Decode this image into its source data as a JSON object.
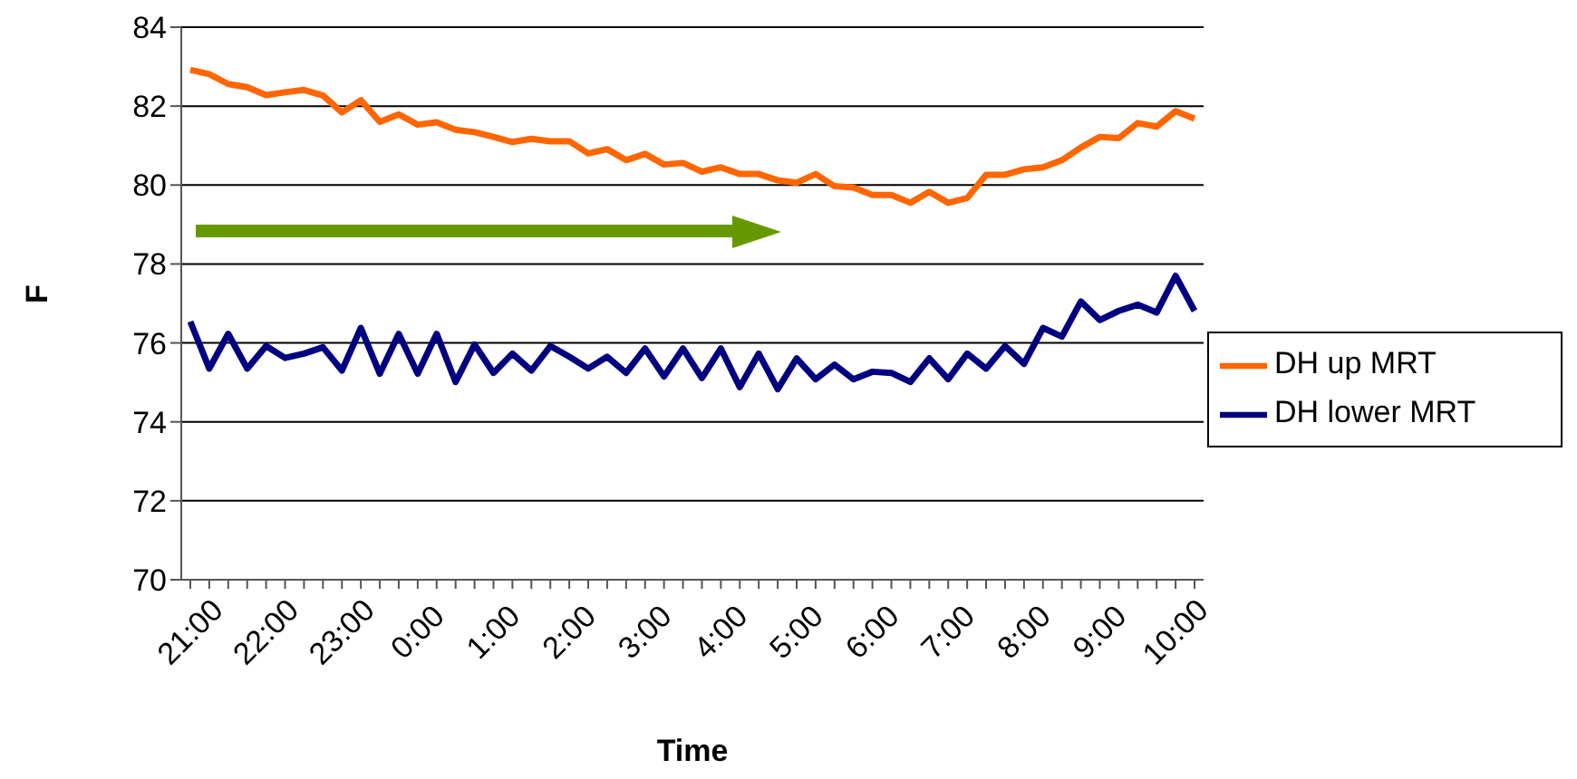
{
  "chart_data": {
    "type": "line",
    "xlabel": "Time",
    "ylabel": "F",
    "categories": [
      "21:00",
      null,
      null,
      null,
      "22:00",
      null,
      null,
      null,
      "23:00",
      null,
      null,
      null,
      "0:00",
      null,
      null,
      null,
      "1:00",
      null,
      null,
      null,
      "2:00",
      null,
      null,
      null,
      "3:00",
      null,
      null,
      null,
      "4:00",
      null,
      null,
      null,
      "5:00",
      null,
      null,
      null,
      "6:00",
      null,
      null,
      null,
      "7:00",
      null,
      null,
      null,
      "8:00",
      null,
      null,
      null,
      "9:00",
      null,
      null,
      null,
      "10:00",
      null
    ],
    "series": [
      {
        "name": "DH up MRT",
        "color": "#ff6600",
        "values": [
          82.92,
          82.81,
          82.56,
          82.48,
          82.28,
          82.35,
          82.41,
          82.27,
          81.84,
          82.15,
          81.6,
          81.79,
          81.53,
          81.59,
          81.4,
          81.34,
          81.22,
          81.09,
          81.17,
          81.11,
          81.11,
          80.8,
          80.91,
          80.63,
          80.79,
          80.52,
          80.56,
          80.34,
          80.45,
          80.28,
          80.28,
          80.12,
          80.06,
          80.28,
          79.97,
          79.94,
          79.75,
          79.75,
          79.55,
          79.83,
          79.55,
          79.67,
          80.26,
          80.26,
          80.4,
          80.45,
          80.63,
          80.95,
          81.22,
          81.19,
          81.57,
          81.48,
          81.87,
          81.68
        ]
      },
      {
        "name": "DH lower MRT",
        "color": "#000080",
        "values": [
          76.54,
          75.35,
          76.23,
          75.35,
          75.92,
          75.62,
          75.73,
          75.89,
          75.3,
          76.38,
          75.22,
          76.23,
          75.22,
          76.23,
          75.01,
          75.96,
          75.24,
          75.73,
          75.3,
          75.92,
          75.65,
          75.35,
          75.65,
          75.24,
          75.86,
          75.15,
          75.86,
          75.11,
          75.86,
          74.88,
          75.73,
          74.83,
          75.61,
          75.08,
          75.45,
          75.08,
          75.27,
          75.24,
          75.01,
          75.61,
          75.08,
          75.73,
          75.35,
          75.92,
          75.47,
          76.38,
          76.16,
          77.05,
          76.58,
          76.81,
          76.97,
          76.77,
          77.7,
          76.81
        ]
      }
    ],
    "ylim": [
      70,
      84
    ],
    "yticks": [
      70,
      72,
      74,
      76,
      78,
      80,
      82,
      84
    ],
    "grid": "y",
    "legend": "right",
    "marker": "none",
    "line_style": "solid"
  }
}
